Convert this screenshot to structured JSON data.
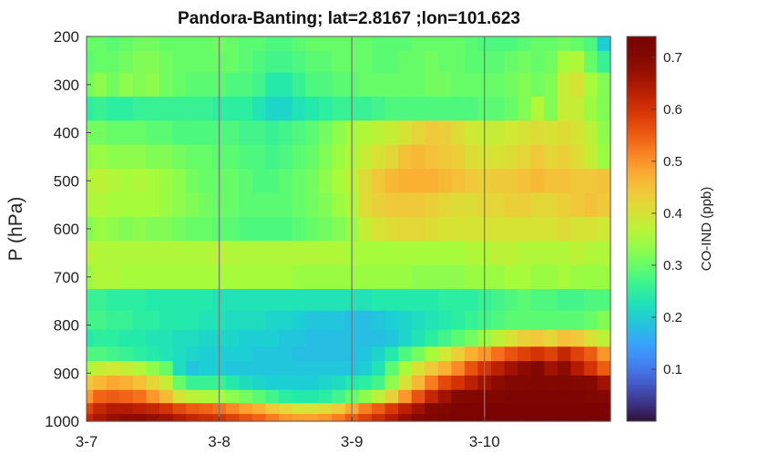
{
  "chart_data": {
    "type": "heatmap",
    "title": "Pandora-Banting; lat=2.8167 ;lon=101.623",
    "ylabel": "P (hPa)",
    "colorbar_label": "CO-IND (ppb)",
    "x_ticks": [
      "3-7",
      "3-8",
      "3-9",
      "3-10"
    ],
    "x_tick_days": [
      0,
      1,
      2,
      3
    ],
    "x_range_days": [
      0,
      3.95
    ],
    "day_separators": [
      1,
      2,
      3
    ],
    "y_ticks": [
      200,
      300,
      400,
      500,
      600,
      700,
      800,
      900,
      1000
    ],
    "ylim": [
      200,
      1000
    ],
    "y_reversed": true,
    "colorbar_ticks": [
      0.1,
      0.2,
      0.3,
      0.4,
      0.5,
      0.6,
      0.7
    ],
    "color_range": [
      0.0,
      0.74
    ],
    "colormap": "turbo",
    "time_days": [
      0.0,
      0.1,
      0.2,
      0.3,
      0.4,
      0.5,
      0.6,
      0.7,
      0.8,
      0.9,
      1.0,
      1.1,
      1.2,
      1.3,
      1.4,
      1.5,
      1.6,
      1.7,
      1.8,
      1.9,
      2.0,
      2.1,
      2.2,
      2.3,
      2.4,
      2.5,
      2.6,
      2.7,
      2.8,
      2.9,
      3.0,
      3.1,
      3.2,
      3.3,
      3.4,
      3.5,
      3.6,
      3.7,
      3.8,
      3.9
    ],
    "pressure_hPa": [
      210,
      250,
      300,
      350,
      400,
      450,
      500,
      550,
      600,
      650,
      700,
      750,
      790,
      830,
      860,
      890,
      920,
      950,
      975,
      995
    ],
    "values": [
      [
        0.3,
        0.3,
        0.29,
        0.3,
        0.31,
        0.31,
        0.3,
        0.3,
        0.3,
        0.3,
        0.31,
        0.3,
        0.29,
        0.29,
        0.28,
        0.28,
        0.29,
        0.3,
        0.3,
        0.3,
        0.3,
        0.3,
        0.29,
        0.29,
        0.29,
        0.3,
        0.3,
        0.3,
        0.3,
        0.29,
        0.28,
        0.28,
        0.28,
        0.29,
        0.3,
        0.3,
        0.31,
        0.3,
        0.28,
        0.2
      ],
      [
        0.29,
        0.3,
        0.3,
        0.31,
        0.32,
        0.32,
        0.31,
        0.3,
        0.3,
        0.3,
        0.3,
        0.3,
        0.29,
        0.28,
        0.27,
        0.27,
        0.28,
        0.29,
        0.29,
        0.3,
        0.3,
        0.3,
        0.29,
        0.29,
        0.3,
        0.3,
        0.31,
        0.3,
        0.3,
        0.29,
        0.29,
        0.29,
        0.3,
        0.31,
        0.3,
        0.31,
        0.35,
        0.36,
        0.3,
        0.26
      ],
      [
        0.31,
        0.33,
        0.31,
        0.33,
        0.32,
        0.33,
        0.31,
        0.3,
        0.29,
        0.29,
        0.29,
        0.28,
        0.28,
        0.27,
        0.24,
        0.24,
        0.26,
        0.28,
        0.28,
        0.29,
        0.29,
        0.3,
        0.3,
        0.3,
        0.3,
        0.3,
        0.31,
        0.31,
        0.3,
        0.3,
        0.3,
        0.3,
        0.31,
        0.32,
        0.31,
        0.32,
        0.38,
        0.4,
        0.35,
        0.32
      ],
      [
        0.25,
        0.26,
        0.25,
        0.25,
        0.26,
        0.26,
        0.26,
        0.26,
        0.26,
        0.26,
        0.25,
        0.25,
        0.25,
        0.23,
        0.21,
        0.21,
        0.23,
        0.24,
        0.25,
        0.26,
        0.26,
        0.26,
        0.27,
        0.28,
        0.28,
        0.28,
        0.28,
        0.28,
        0.28,
        0.28,
        0.29,
        0.29,
        0.3,
        0.32,
        0.36,
        0.32,
        0.38,
        0.38,
        0.34,
        0.32
      ],
      [
        0.31,
        0.31,
        0.3,
        0.3,
        0.3,
        0.29,
        0.29,
        0.28,
        0.28,
        0.28,
        0.28,
        0.28,
        0.27,
        0.27,
        0.26,
        0.27,
        0.28,
        0.29,
        0.31,
        0.33,
        0.35,
        0.36,
        0.37,
        0.38,
        0.4,
        0.42,
        0.44,
        0.43,
        0.41,
        0.39,
        0.38,
        0.38,
        0.39,
        0.4,
        0.41,
        0.4,
        0.41,
        0.4,
        0.37,
        0.33
      ],
      [
        0.33,
        0.34,
        0.33,
        0.33,
        0.33,
        0.32,
        0.32,
        0.31,
        0.3,
        0.3,
        0.29,
        0.29,
        0.28,
        0.28,
        0.27,
        0.28,
        0.29,
        0.3,
        0.32,
        0.34,
        0.36,
        0.38,
        0.4,
        0.42,
        0.45,
        0.46,
        0.45,
        0.44,
        0.43,
        0.41,
        0.4,
        0.4,
        0.41,
        0.42,
        0.44,
        0.42,
        0.43,
        0.41,
        0.38,
        0.34
      ],
      [
        0.36,
        0.37,
        0.36,
        0.35,
        0.36,
        0.35,
        0.34,
        0.33,
        0.31,
        0.3,
        0.3,
        0.3,
        0.29,
        0.28,
        0.28,
        0.29,
        0.3,
        0.31,
        0.33,
        0.35,
        0.37,
        0.41,
        0.44,
        0.46,
        0.47,
        0.47,
        0.47,
        0.46,
        0.45,
        0.44,
        0.43,
        0.44,
        0.44,
        0.45,
        0.46,
        0.45,
        0.45,
        0.44,
        0.44,
        0.45
      ],
      [
        0.36,
        0.36,
        0.35,
        0.35,
        0.35,
        0.35,
        0.34,
        0.33,
        0.32,
        0.31,
        0.3,
        0.3,
        0.29,
        0.29,
        0.29,
        0.29,
        0.3,
        0.31,
        0.32,
        0.34,
        0.36,
        0.41,
        0.43,
        0.44,
        0.44,
        0.44,
        0.43,
        0.42,
        0.41,
        0.41,
        0.42,
        0.42,
        0.43,
        0.43,
        0.42,
        0.42,
        0.43,
        0.44,
        0.45,
        0.44
      ],
      [
        0.32,
        0.34,
        0.33,
        0.32,
        0.33,
        0.32,
        0.32,
        0.31,
        0.3,
        0.3,
        0.29,
        0.29,
        0.28,
        0.28,
        0.28,
        0.28,
        0.29,
        0.3,
        0.31,
        0.32,
        0.34,
        0.38,
        0.4,
        0.41,
        0.42,
        0.42,
        0.41,
        0.4,
        0.4,
        0.4,
        0.4,
        0.4,
        0.4,
        0.4,
        0.4,
        0.4,
        0.41,
        0.4,
        0.4,
        0.39
      ],
      [
        0.37,
        0.36,
        0.36,
        0.36,
        0.36,
        0.36,
        0.36,
        0.36,
        0.36,
        0.36,
        0.37,
        0.36,
        0.36,
        0.36,
        0.36,
        0.36,
        0.36,
        0.36,
        0.36,
        0.36,
        0.35,
        0.35,
        0.35,
        0.35,
        0.35,
        0.35,
        0.35,
        0.35,
        0.35,
        0.36,
        0.36,
        0.37,
        0.37,
        0.36,
        0.36,
        0.36,
        0.36,
        0.37,
        0.36,
        0.36
      ],
      [
        0.34,
        0.36,
        0.36,
        0.35,
        0.35,
        0.35,
        0.35,
        0.35,
        0.35,
        0.35,
        0.35,
        0.35,
        0.35,
        0.35,
        0.35,
        0.35,
        0.34,
        0.34,
        0.34,
        0.34,
        0.34,
        0.34,
        0.34,
        0.34,
        0.34,
        0.33,
        0.33,
        0.33,
        0.33,
        0.34,
        0.34,
        0.34,
        0.35,
        0.35,
        0.34,
        0.34,
        0.35,
        0.34,
        0.34,
        0.34
      ],
      [
        0.26,
        0.26,
        0.25,
        0.25,
        0.25,
        0.24,
        0.24,
        0.24,
        0.24,
        0.24,
        0.23,
        0.23,
        0.23,
        0.23,
        0.23,
        0.23,
        0.23,
        0.23,
        0.23,
        0.23,
        0.23,
        0.23,
        0.24,
        0.24,
        0.24,
        0.24,
        0.24,
        0.25,
        0.25,
        0.25,
        0.26,
        0.27,
        0.28,
        0.29,
        0.28,
        0.28,
        0.27,
        0.27,
        0.28,
        0.28
      ],
      [
        0.27,
        0.27,
        0.26,
        0.26,
        0.25,
        0.25,
        0.24,
        0.24,
        0.24,
        0.23,
        0.23,
        0.22,
        0.22,
        0.22,
        0.21,
        0.21,
        0.2,
        0.19,
        0.19,
        0.19,
        0.18,
        0.18,
        0.19,
        0.2,
        0.21,
        0.22,
        0.23,
        0.24,
        0.25,
        0.26,
        0.27,
        0.28,
        0.29,
        0.29,
        0.29,
        0.29,
        0.29,
        0.29,
        0.3,
        0.32
      ],
      [
        0.24,
        0.25,
        0.25,
        0.24,
        0.24,
        0.23,
        0.23,
        0.22,
        0.22,
        0.21,
        0.21,
        0.21,
        0.2,
        0.2,
        0.2,
        0.19,
        0.19,
        0.18,
        0.18,
        0.18,
        0.18,
        0.18,
        0.18,
        0.19,
        0.21,
        0.23,
        0.25,
        0.27,
        0.29,
        0.31,
        0.34,
        0.37,
        0.4,
        0.43,
        0.44,
        0.42,
        0.45,
        0.44,
        0.4,
        0.37
      ],
      [
        0.28,
        0.28,
        0.27,
        0.26,
        0.25,
        0.24,
        0.23,
        0.22,
        0.21,
        0.2,
        0.2,
        0.2,
        0.2,
        0.19,
        0.19,
        0.19,
        0.18,
        0.18,
        0.18,
        0.18,
        0.18,
        0.19,
        0.21,
        0.24,
        0.28,
        0.31,
        0.35,
        0.39,
        0.43,
        0.47,
        0.5,
        0.53,
        0.56,
        0.58,
        0.6,
        0.58,
        0.62,
        0.58,
        0.55,
        0.5
      ],
      [
        0.35,
        0.38,
        0.39,
        0.38,
        0.36,
        0.33,
        0.3,
        0.22,
        0.19,
        0.2,
        0.2,
        0.19,
        0.19,
        0.19,
        0.19,
        0.19,
        0.19,
        0.19,
        0.19,
        0.19,
        0.19,
        0.2,
        0.23,
        0.29,
        0.35,
        0.4,
        0.44,
        0.47,
        0.51,
        0.56,
        0.6,
        0.63,
        0.66,
        0.68,
        0.7,
        0.66,
        0.68,
        0.64,
        0.6,
        0.55
      ],
      [
        0.44,
        0.46,
        0.48,
        0.47,
        0.45,
        0.42,
        0.38,
        0.3,
        0.26,
        0.26,
        0.26,
        0.24,
        0.22,
        0.21,
        0.2,
        0.2,
        0.2,
        0.2,
        0.21,
        0.22,
        0.24,
        0.25,
        0.27,
        0.33,
        0.4,
        0.46,
        0.52,
        0.57,
        0.6,
        0.63,
        0.66,
        0.68,
        0.7,
        0.7,
        0.71,
        0.7,
        0.71,
        0.7,
        0.69,
        0.66
      ],
      [
        0.5,
        0.54,
        0.55,
        0.54,
        0.53,
        0.5,
        0.46,
        0.4,
        0.37,
        0.36,
        0.35,
        0.33,
        0.31,
        0.29,
        0.27,
        0.25,
        0.24,
        0.24,
        0.25,
        0.27,
        0.3,
        0.33,
        0.37,
        0.43,
        0.5,
        0.56,
        0.62,
        0.66,
        0.69,
        0.7,
        0.71,
        0.71,
        0.72,
        0.72,
        0.72,
        0.72,
        0.72,
        0.72,
        0.71,
        0.7
      ],
      [
        0.58,
        0.62,
        0.64,
        0.64,
        0.63,
        0.62,
        0.6,
        0.57,
        0.55,
        0.54,
        0.53,
        0.51,
        0.49,
        0.47,
        0.44,
        0.42,
        0.4,
        0.4,
        0.41,
        0.44,
        0.48,
        0.52,
        0.55,
        0.59,
        0.63,
        0.66,
        0.69,
        0.71,
        0.72,
        0.73,
        0.73,
        0.73,
        0.73,
        0.73,
        0.73,
        0.73,
        0.73,
        0.73,
        0.73,
        0.73
      ],
      [
        0.62,
        0.65,
        0.67,
        0.68,
        0.68,
        0.67,
        0.66,
        0.64,
        0.62,
        0.61,
        0.6,
        0.58,
        0.56,
        0.54,
        0.52,
        0.5,
        0.49,
        0.49,
        0.5,
        0.52,
        0.55,
        0.58,
        0.61,
        0.64,
        0.67,
        0.69,
        0.71,
        0.72,
        0.73,
        0.73,
        0.74,
        0.74,
        0.74,
        0.74,
        0.74,
        0.74,
        0.74,
        0.74,
        0.74,
        0.74
      ]
    ]
  }
}
